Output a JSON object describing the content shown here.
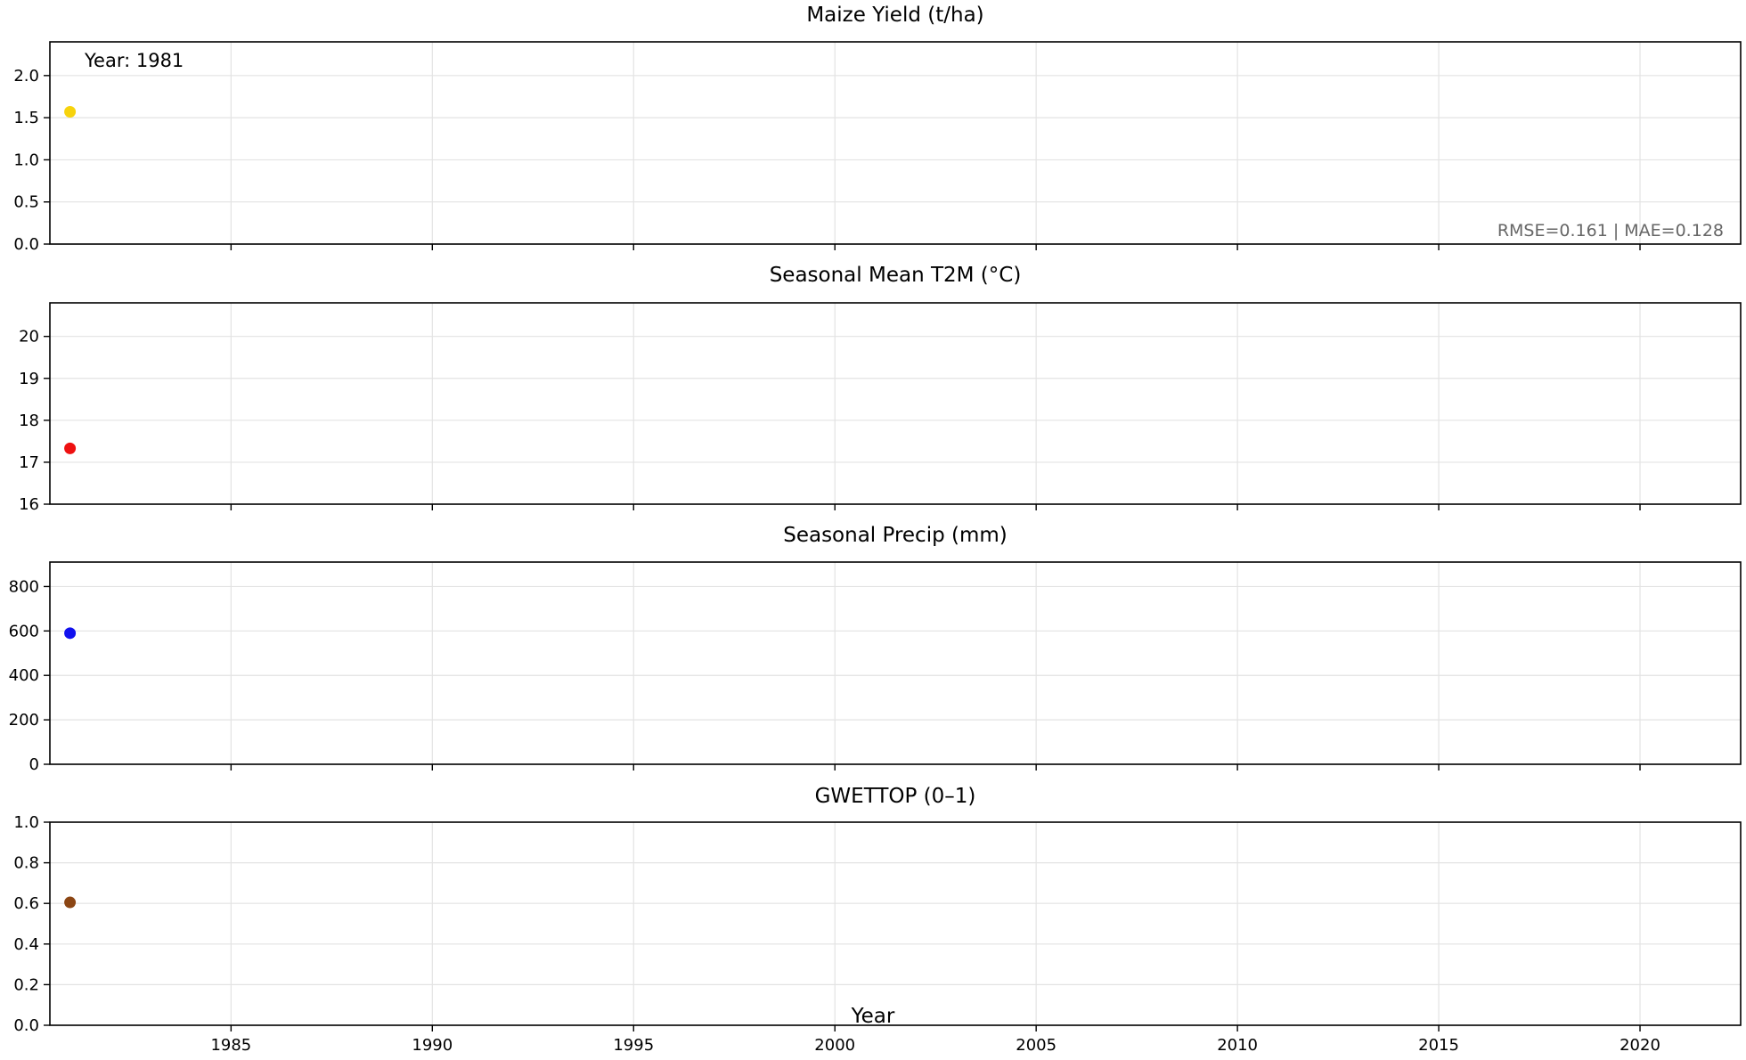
{
  "chart_data": [
    {
      "type": "scatter",
      "title": "Maize Yield (t/ha)",
      "xlabel": "",
      "ylabel": "",
      "xlim": [
        1980.5,
        2022.5
      ],
      "ylim": [
        0,
        2.4
      ],
      "xticks": [
        1985,
        1990,
        1995,
        2000,
        2005,
        2010,
        2015,
        2020
      ],
      "yticks": [
        0.0,
        0.5,
        1.0,
        1.5,
        2.0
      ],
      "ytick_labels": [
        "0.0",
        "0.5",
        "1.0",
        "1.5",
        "2.0"
      ],
      "show_xtick_labels": false,
      "grid": true,
      "color": "#f7d30c",
      "points": [
        {
          "x": 1981,
          "y": 1.57
        }
      ],
      "year_annotation": "Year: 1981",
      "metrics_annotation": "RMSE=0.161 | MAE=0.128"
    },
    {
      "type": "scatter",
      "title": "Seasonal Mean T2M (°C)",
      "xlabel": "",
      "ylabel": "",
      "xlim": [
        1980.5,
        2022.5
      ],
      "ylim": [
        16,
        20.8
      ],
      "xticks": [
        1985,
        1990,
        1995,
        2000,
        2005,
        2010,
        2015,
        2020
      ],
      "yticks": [
        16,
        17,
        18,
        19,
        20
      ],
      "ytick_labels": [
        "16",
        "17",
        "18",
        "19",
        "20"
      ],
      "show_xtick_labels": false,
      "grid": true,
      "color": "#ee1111",
      "points": [
        {
          "x": 1981,
          "y": 17.33
        }
      ]
    },
    {
      "type": "scatter",
      "title": "Seasonal Precip (mm)",
      "xlabel": "",
      "ylabel": "",
      "xlim": [
        1980.5,
        2022.5
      ],
      "ylim": [
        0,
        910
      ],
      "xticks": [
        1985,
        1990,
        1995,
        2000,
        2005,
        2010,
        2015,
        2020
      ],
      "yticks": [
        0,
        200,
        400,
        600,
        800
      ],
      "ytick_labels": [
        "0",
        "200",
        "400",
        "600",
        "800"
      ],
      "show_xtick_labels": false,
      "grid": true,
      "color": "#1010ee",
      "points": [
        {
          "x": 1981,
          "y": 590
        }
      ]
    },
    {
      "type": "scatter",
      "title": "GWETTOP (0–1)",
      "xlabel": "Year",
      "ylabel": "",
      "xlim": [
        1980.5,
        2022.5
      ],
      "ylim": [
        0,
        1.0
      ],
      "xticks": [
        1985,
        1990,
        1995,
        2000,
        2005,
        2010,
        2015,
        2020
      ],
      "xtick_labels": [
        "1985",
        "1990",
        "1995",
        "2000",
        "2005",
        "2010",
        "2015",
        "2020"
      ],
      "yticks": [
        0.0,
        0.2,
        0.4,
        0.6,
        0.8,
        1.0
      ],
      "ytick_labels": [
        "0.0",
        "0.2",
        "0.4",
        "0.6",
        "0.8",
        "1.0"
      ],
      "show_xtick_labels": true,
      "grid": true,
      "color": "#8b4513",
      "points": [
        {
          "x": 1981,
          "y": 0.605
        }
      ]
    }
  ]
}
